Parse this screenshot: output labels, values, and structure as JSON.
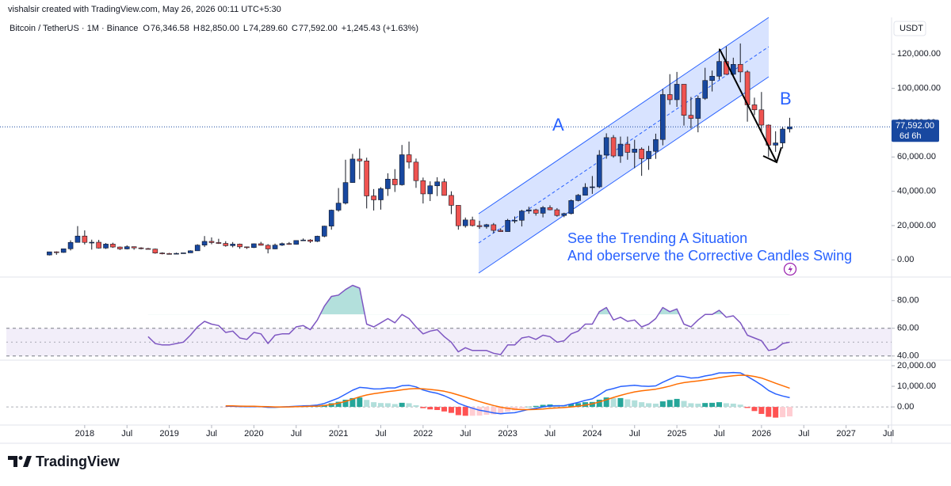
{
  "header": {
    "created": "vishalsir created with TradingView.com, May 26, 2026 00:11 UTC+5:30",
    "symbol": "Bitcoin / TetherUS · 1M · Binance",
    "ohlc": [
      {
        "key": "O",
        "value": "76,346.58"
      },
      {
        "key": "H",
        "value": "82,850.00"
      },
      {
        "key": "L",
        "value": "74,289.60"
      },
      {
        "key": "C",
        "value": "77,592.00"
      }
    ],
    "change": "+1,245.43 (+1.63%)",
    "currency": "USDT"
  },
  "annotations": {
    "a": "A",
    "b": "B",
    "lines": [
      "See the Trending A Situation",
      "And oberserve the Corrective Candles Swing"
    ]
  },
  "brand": "TradingView",
  "chart_data": [
    {
      "type": "candlestick",
      "up_color": "#1848a0",
      "down_color": "#ef5350",
      "xlim": [
        "2017-02",
        "2027-07"
      ],
      "xticks": [
        {
          "value": "2018-01",
          "label": "2018"
        },
        {
          "value": "2018-07",
          "label": "Jul"
        },
        {
          "value": "2019-01",
          "label": "2019"
        },
        {
          "value": "2019-07",
          "label": "Jul"
        },
        {
          "value": "2020-01",
          "label": "2020"
        },
        {
          "value": "2020-07",
          "label": "Jul"
        },
        {
          "value": "2021-01",
          "label": "2021"
        },
        {
          "value": "2021-07",
          "label": "Jul"
        },
        {
          "value": "2022-01",
          "label": "2022"
        },
        {
          "value": "2022-07",
          "label": "Jul"
        },
        {
          "value": "2023-01",
          "label": "2023"
        },
        {
          "value": "2023-07",
          "label": "Jul"
        },
        {
          "value": "2024-01",
          "label": "2024"
        },
        {
          "value": "2024-07",
          "label": "Jul"
        },
        {
          "value": "2025-01",
          "label": "2025"
        },
        {
          "value": "2025-07",
          "label": "Jul"
        },
        {
          "value": "2026-01",
          "label": "2026"
        },
        {
          "value": "2026-07",
          "label": "Jul"
        },
        {
          "value": "2027-01",
          "label": "2027"
        },
        {
          "value": "2027-07",
          "label": "Jul"
        }
      ],
      "ylim": [
        -10000,
        146000
      ],
      "yticks": [
        {
          "value": 0,
          "label": "0.00"
        },
        {
          "value": 20000,
          "label": "20,000.00"
        },
        {
          "value": 40000,
          "label": "40,000.00"
        },
        {
          "value": 60000,
          "label": "60,000.00"
        },
        {
          "value": 80000,
          "label": "80,000.00"
        },
        {
          "value": 100000,
          "label": "100,000.00"
        },
        {
          "value": 120000,
          "label": "120,000.00"
        }
      ],
      "last_price": {
        "value": 77592,
        "label": "77,592.00"
      },
      "countdown": "6d 6h",
      "x": [
        "2017-08",
        "2017-09",
        "2017-10",
        "2017-11",
        "2017-12",
        "2018-01",
        "2018-02",
        "2018-03",
        "2018-04",
        "2018-05",
        "2018-06",
        "2018-07",
        "2018-08",
        "2018-09",
        "2018-10",
        "2018-11",
        "2018-12",
        "2019-01",
        "2019-02",
        "2019-03",
        "2019-04",
        "2019-05",
        "2019-06",
        "2019-07",
        "2019-08",
        "2019-09",
        "2019-10",
        "2019-11",
        "2019-12",
        "2020-01",
        "2020-02",
        "2020-03",
        "2020-04",
        "2020-05",
        "2020-06",
        "2020-07",
        "2020-08",
        "2020-09",
        "2020-10",
        "2020-11",
        "2020-12",
        "2021-01",
        "2021-02",
        "2021-03",
        "2021-04",
        "2021-05",
        "2021-06",
        "2021-07",
        "2021-08",
        "2021-09",
        "2021-10",
        "2021-11",
        "2021-12",
        "2022-01",
        "2022-02",
        "2022-03",
        "2022-04",
        "2022-05",
        "2022-06",
        "2022-07",
        "2022-08",
        "2022-09",
        "2022-10",
        "2022-11",
        "2022-12",
        "2023-01",
        "2023-02",
        "2023-03",
        "2023-04",
        "2023-05",
        "2023-06",
        "2023-07",
        "2023-08",
        "2023-09",
        "2023-10",
        "2023-11",
        "2023-12",
        "2024-01",
        "2024-02",
        "2024-03",
        "2024-04",
        "2024-05",
        "2024-06",
        "2024-07",
        "2024-08",
        "2024-09",
        "2024-10",
        "2024-11",
        "2024-12",
        "2025-01",
        "2025-02",
        "2025-03",
        "2025-04",
        "2025-05",
        "2025-06",
        "2025-07",
        "2025-08",
        "2025-09",
        "2025-10",
        "2025-11",
        "2025-12",
        "2026-01",
        "2026-02",
        "2026-03",
        "2026-04",
        "2026-05"
      ],
      "open": [
        2870,
        4700,
        4340,
        6470,
        10200,
        13900,
        10200,
        10300,
        6900,
        9200,
        7500,
        6400,
        7700,
        7000,
        6600,
        6300,
        4000,
        3700,
        3400,
        3800,
        4100,
        5300,
        8600,
        10800,
        10100,
        9600,
        8300,
        9200,
        7600,
        7200,
        9400,
        8500,
        6400,
        8600,
        9500,
        9100,
        11300,
        11600,
        10800,
        13800,
        19700,
        29000,
        33100,
        45100,
        58800,
        57700,
        37300,
        35000,
        41500,
        47100,
        43800,
        61300,
        57000,
        46200,
        38500,
        43200,
        45500,
        37600,
        31800,
        19900,
        23300,
        20000,
        19400,
        20500,
        17200,
        16500,
        23100,
        23100,
        28500,
        29200,
        27200,
        30500,
        29200,
        25900,
        27000,
        34600,
        37700,
        42300,
        42600,
        61100,
        71300,
        60600,
        67500,
        62700,
        64600,
        59000,
        63300,
        70200,
        96400,
        93400,
        102400,
        84300,
        82500,
        94200,
        104600,
        107100,
        115700,
        108200,
        114000,
        109600,
        90400,
        87500,
        78600,
        66900,
        68200,
        76346.58
      ],
      "high": [
        4740,
        4980,
        6470,
        11400,
        19700,
        17200,
        11800,
        11700,
        9800,
        10000,
        7800,
        8500,
        7800,
        7400,
        7000,
        6600,
        4400,
        4100,
        4200,
        4100,
        5600,
        9100,
        13900,
        13100,
        12300,
        10900,
        10400,
        9500,
        7700,
        9600,
        10500,
        9200,
        9500,
        10100,
        10400,
        11400,
        12500,
        12100,
        14100,
        19900,
        29300,
        41900,
        58400,
        61800,
        64900,
        59600,
        41300,
        42400,
        50500,
        52900,
        67000,
        69000,
        59100,
        48000,
        45800,
        48200,
        47400,
        40000,
        31900,
        24700,
        25200,
        22800,
        21000,
        21500,
        18400,
        23900,
        25300,
        29200,
        31000,
        29800,
        31400,
        31800,
        30200,
        27500,
        35200,
        38400,
        44700,
        48900,
        64000,
        73800,
        72800,
        71900,
        71900,
        70000,
        65600,
        66500,
        73600,
        99600,
        108300,
        109600,
        102500,
        95000,
        95800,
        112000,
        110400,
        123200,
        124500,
        117900,
        126200,
        110600,
        94600,
        97900,
        79000,
        75000,
        77500,
        82850
      ],
      "low": [
        2580,
        2970,
        4110,
        5500,
        10700,
        9000,
        6000,
        6600,
        6400,
        7000,
        5800,
        6100,
        5900,
        6100,
        6200,
        3600,
        3200,
        3300,
        3400,
        3700,
        4100,
        5300,
        7500,
        9100,
        9300,
        7700,
        7300,
        6500,
        6400,
        6900,
        8400,
        3800,
        6200,
        8100,
        8800,
        8900,
        11000,
        9900,
        10400,
        13200,
        17600,
        28100,
        32300,
        45000,
        47000,
        30000,
        28800,
        29300,
        37300,
        39600,
        43300,
        53300,
        42000,
        32900,
        34300,
        37200,
        37600,
        26700,
        17600,
        18800,
        19500,
        18100,
        18200,
        15500,
        16300,
        16500,
        21400,
        19500,
        26900,
        25800,
        24800,
        28900,
        25200,
        24900,
        26500,
        34100,
        37600,
        38500,
        41900,
        59000,
        59600,
        56600,
        58400,
        53500,
        49000,
        52500,
        58900,
        66800,
        90500,
        89200,
        78300,
        76600,
        74400,
        93300,
        98200,
        105200,
        108000,
        107200,
        103500,
        80600,
        84400,
        74500,
        60000,
        63000,
        65000,
        74289.6
      ],
      "close": [
        4700,
        4340,
        6470,
        10200,
        13900,
        10200,
        10300,
        6900,
        9200,
        7500,
        6400,
        7700,
        7000,
        6600,
        6300,
        4000,
        3700,
        3400,
        3800,
        4100,
        5300,
        8600,
        10800,
        10100,
        9600,
        8300,
        9200,
        7600,
        7200,
        9400,
        8500,
        6400,
        8600,
        9500,
        9100,
        11300,
        11600,
        10800,
        13800,
        19700,
        29000,
        33100,
        45100,
        58800,
        57700,
        37300,
        35000,
        41500,
        47100,
        43800,
        61300,
        57000,
        46200,
        38500,
        43200,
        45500,
        37600,
        31800,
        19900,
        23300,
        20000,
        19400,
        20500,
        17200,
        16500,
        23100,
        23100,
        28500,
        29200,
        27200,
        30500,
        29200,
        25900,
        27000,
        34600,
        37700,
        42300,
        42600,
        61100,
        71300,
        60600,
        67500,
        62700,
        64600,
        59000,
        63300,
        70200,
        96400,
        93400,
        102400,
        84300,
        82500,
        94200,
        104600,
        107100,
        115700,
        108200,
        114000,
        109600,
        90400,
        87500,
        78600,
        66900,
        68200,
        76300,
        77592
      ]
    },
    {
      "type": "line",
      "color": "#7e57c2",
      "band_color": "#7e57c2",
      "band": [
        40,
        60
      ],
      "midline": 50,
      "overbought": 70,
      "overbought_color": "#26a69a",
      "ylim": [
        37,
        97
      ],
      "yticks": [
        {
          "value": 40,
          "label": "40.00"
        },
        {
          "value": 60,
          "label": "60.00"
        },
        {
          "value": 80,
          "label": "80.00"
        }
      ],
      "values": [
        null,
        null,
        null,
        null,
        null,
        null,
        null,
        null,
        null,
        null,
        null,
        null,
        null,
        null,
        54,
        49,
        48,
        48,
        49,
        50,
        55,
        61,
        65,
        63,
        62,
        57,
        58,
        53,
        52,
        57,
        56,
        49,
        55,
        56,
        56,
        61,
        62,
        59,
        66,
        76,
        83,
        84,
        88,
        91,
        89,
        63,
        61,
        64,
        67,
        64,
        70,
        67,
        61,
        56,
        58,
        59,
        54,
        50,
        43,
        46,
        44,
        44,
        44,
        42,
        41,
        48,
        48,
        53,
        54,
        52,
        55,
        54,
        50,
        51,
        56,
        58,
        63,
        63,
        72,
        75,
        66,
        68,
        65,
        66,
        61,
        63,
        67,
        75,
        72,
        74,
        63,
        61,
        66,
        70,
        70,
        73,
        68,
        69,
        64,
        55,
        53,
        51,
        44,
        45,
        49,
        50
      ]
    },
    {
      "type": "macd",
      "ylim": [
        -8800,
        22700
      ],
      "yticks": [
        {
          "value": 0,
          "label": "0.00"
        },
        {
          "value": 10000,
          "label": "10,000.00"
        },
        {
          "value": 20000,
          "label": "20,000.00"
        }
      ],
      "series": [
        {
          "color": "#2962ff",
          "values": [
            null,
            null,
            null,
            null,
            null,
            null,
            null,
            null,
            null,
            null,
            null,
            null,
            null,
            null,
            null,
            null,
            null,
            null,
            null,
            null,
            null,
            null,
            null,
            null,
            null,
            300,
            300,
            200,
            100,
            100,
            100,
            -200,
            -200,
            0,
            100,
            300,
            500,
            600,
            900,
            1700,
            3000,
            4300,
            6200,
            8100,
            9500,
            9200,
            8700,
            8800,
            9200,
            9200,
            10300,
            10500,
            9700,
            8200,
            7300,
            6600,
            5400,
            3900,
            1800,
            500,
            -600,
            -1600,
            -2200,
            -2900,
            -3300,
            -3000,
            -2800,
            -2000,
            -1200,
            -700,
            0,
            500,
            500,
            600,
            1400,
            2200,
            3200,
            3900,
            5900,
            8100,
            8900,
            9900,
            10200,
            10500,
            10100,
            10000,
            10200,
            12000,
            13500,
            15000,
            14700,
            14000,
            14200,
            15000,
            15600,
            16500,
            16500,
            16700,
            16500,
            14800,
            12800,
            10600,
            8000,
            6300,
            5300,
            4500
          ]
        },
        {
          "color": "#ff6d00",
          "values": [
            null,
            null,
            null,
            null,
            null,
            null,
            null,
            null,
            null,
            null,
            null,
            null,
            null,
            null,
            null,
            null,
            null,
            null,
            null,
            null,
            null,
            null,
            null,
            null,
            null,
            500,
            500,
            400,
            300,
            300,
            200,
            100,
            0,
            0,
            0,
            100,
            200,
            300,
            400,
            700,
            1200,
            1800,
            2700,
            3800,
            4900,
            5800,
            6400,
            6900,
            7400,
            7800,
            8300,
            8700,
            8900,
            8800,
            8500,
            8100,
            7600,
            6800,
            5800,
            4800,
            3700,
            2600,
            1600,
            700,
            -100,
            -700,
            -1100,
            -1300,
            -1300,
            -1200,
            -1000,
            -700,
            -500,
            -300,
            0,
            400,
            900,
            1500,
            2400,
            3500,
            4600,
            5600,
            6500,
            7300,
            7800,
            8200,
            8600,
            9300,
            10100,
            11100,
            11800,
            12200,
            12600,
            13100,
            13600,
            14200,
            14700,
            15100,
            15400,
            15300,
            14800,
            14000,
            12800,
            11500,
            10300,
            9100
          ]
        }
      ],
      "histogram": {
        "colors": [
          "#26a69a",
          "#b2dfdb",
          "#ff5252",
          "#ffcdd2"
        ],
        "values": [
          null,
          null,
          null,
          null,
          null,
          null,
          null,
          null,
          null,
          null,
          null,
          null,
          null,
          null,
          null,
          null,
          null,
          null,
          null,
          null,
          null,
          null,
          null,
          null,
          null,
          -200,
          -200,
          -200,
          -200,
          -200,
          -100,
          -300,
          -200,
          0,
          100,
          200,
          300,
          300,
          500,
          1000,
          1800,
          2500,
          3500,
          4300,
          4600,
          3400,
          2300,
          1900,
          1800,
          1400,
          2000,
          1800,
          800,
          -600,
          -1200,
          -1500,
          -2200,
          -2900,
          -4000,
          -4300,
          -4300,
          -4200,
          -3800,
          -3600,
          -3200,
          -2300,
          -1700,
          -700,
          100,
          500,
          1000,
          1200,
          1000,
          900,
          1400,
          1800,
          2300,
          2400,
          3500,
          4600,
          4300,
          4300,
          3700,
          3200,
          2300,
          1800,
          1600,
          2700,
          3400,
          3900,
          2900,
          1800,
          1600,
          1900,
          2000,
          2300,
          1800,
          1600,
          1100,
          -500,
          -2000,
          -3400,
          -4800,
          -5200,
          -5000,
          -4600
        ]
      }
    }
  ]
}
